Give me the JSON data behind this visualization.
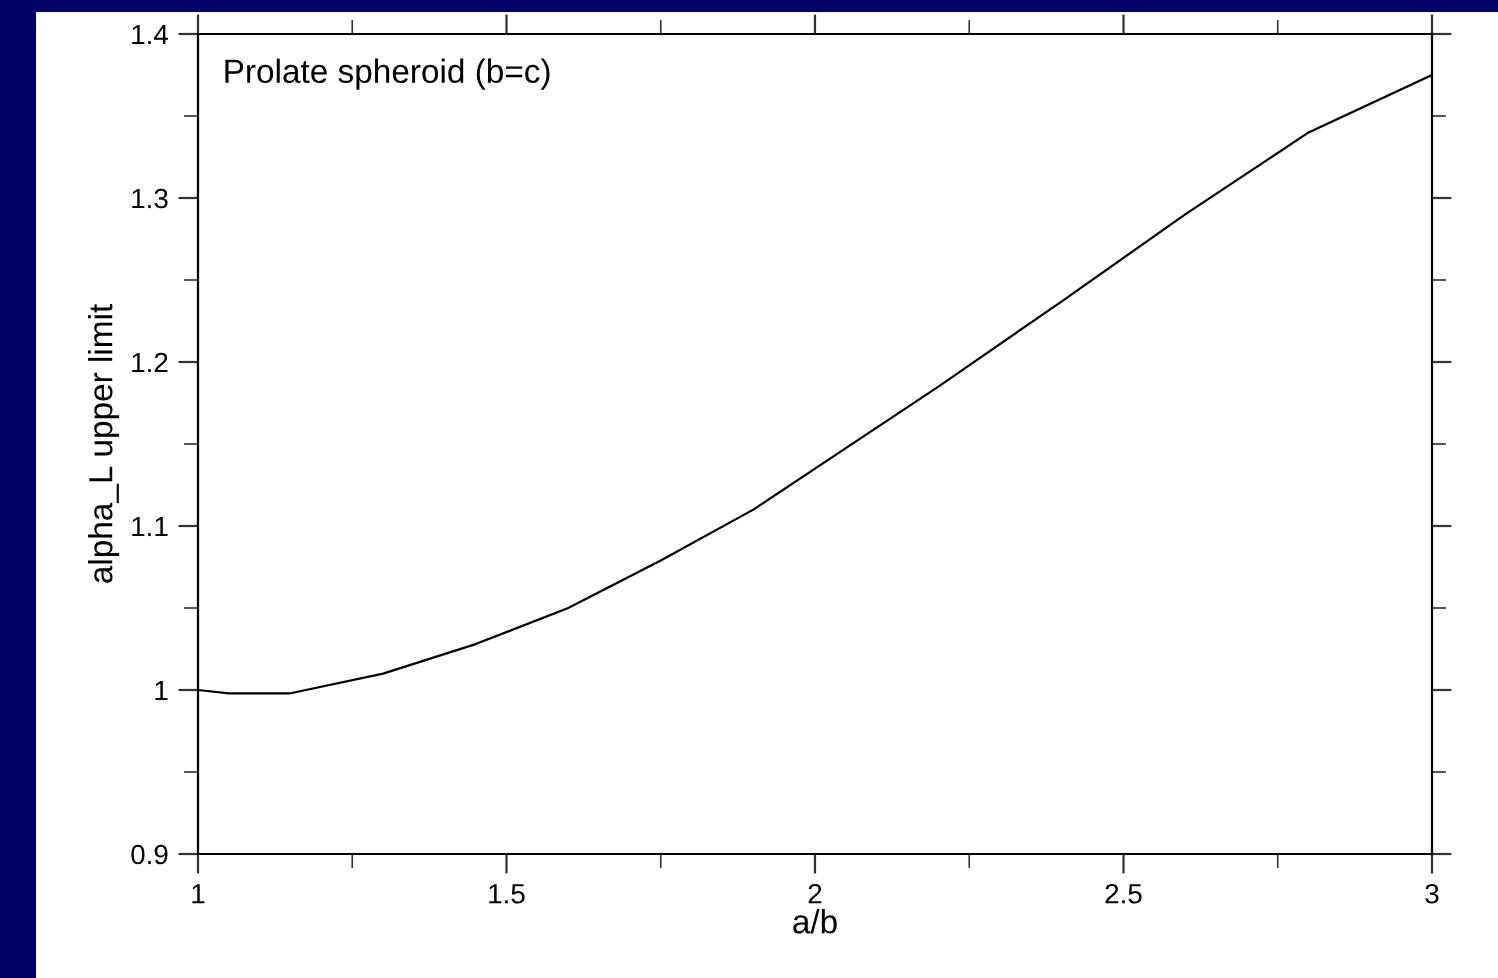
{
  "chart_data": {
    "type": "line",
    "xlabel": "a/b",
    "ylabel": "alpha_L upper limit",
    "annotations": [
      "Prolate spheroid (b=c)"
    ],
    "x": [
      1.0,
      1.05,
      1.15,
      1.3,
      1.45,
      1.6,
      1.75,
      1.9,
      2.0,
      2.2,
      2.4,
      2.6,
      2.8,
      3.0
    ],
    "series": [
      {
        "color": "#000000",
        "values": [
          1.0,
          0.998,
          0.998,
          1.01,
          1.028,
          1.05,
          1.079,
          1.11,
          1.135,
          1.185,
          1.237,
          1.29,
          1.34,
          1.375
        ]
      }
    ],
    "xlim": [
      1,
      3
    ],
    "xticks": [
      1,
      1.5,
      2,
      2.5,
      3
    ],
    "ylim": [
      0.9,
      1.4
    ],
    "yticks": [
      0.9,
      1,
      1.1,
      1.2,
      1.3,
      1.4
    ],
    "grid": false,
    "marker": "none",
    "line_style": "solid"
  }
}
